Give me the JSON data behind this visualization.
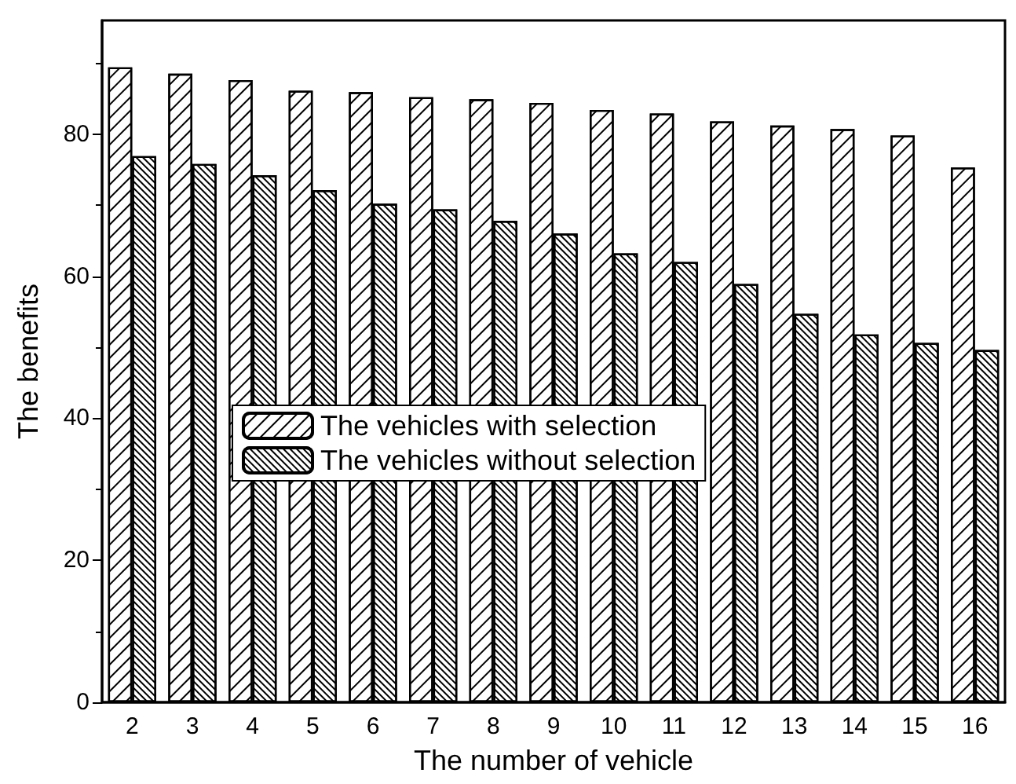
{
  "chart_data": {
    "type": "bar",
    "xlabel": "The number of vehicle",
    "ylabel": "The benefits",
    "categories": [
      "2",
      "3",
      "4",
      "5",
      "6",
      "7",
      "8",
      "9",
      "10",
      "11",
      "12",
      "13",
      "14",
      "15",
      "16"
    ],
    "series": [
      {
        "name": "The vehicles with selection",
        "color": "#ffffff",
        "values": [
          89.4,
          88.5,
          87.6,
          86.1,
          85.9,
          85.2,
          84.9,
          84.4,
          83.4,
          82.9,
          81.8,
          81.2,
          80.7,
          79.8,
          75.3
        ]
      },
      {
        "name": "The vehicles without selection",
        "color": "#ffffff",
        "values": [
          76.9,
          75.8,
          74.2,
          72.1,
          70.2,
          69.4,
          67.8,
          66.0,
          63.2,
          62.0,
          58.9,
          54.7,
          51.8,
          50.6,
          49.6
        ]
      }
    ],
    "ylim": [
      0,
      96
    ],
    "yticks": [
      0,
      20,
      40,
      60,
      80
    ],
    "grid": false,
    "legend": "left"
  }
}
